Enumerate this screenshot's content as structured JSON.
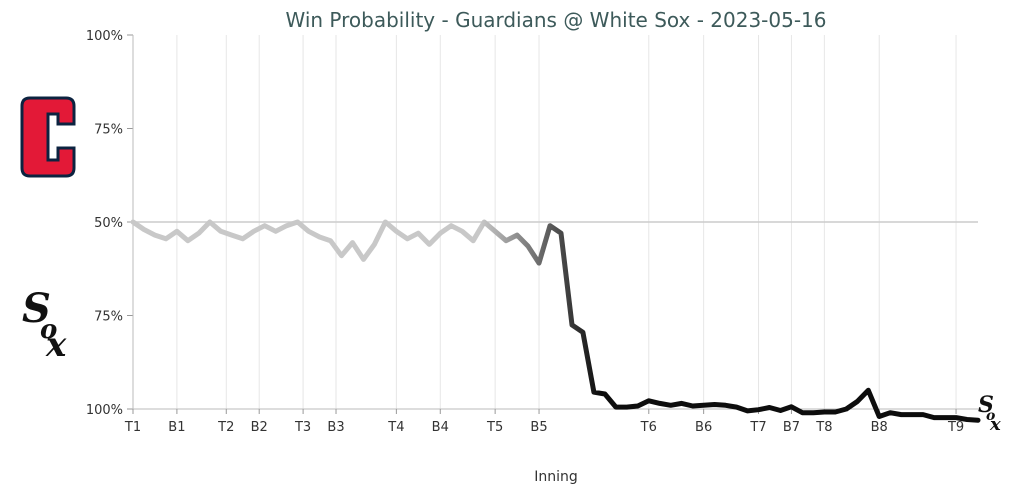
{
  "chart_data": {
    "type": "line",
    "title": "Win Probability - Guardians @ White Sox - 2023-05-16",
    "xlabel": "Inning",
    "ylabel": "",
    "y_tick_labels": [
      "100%",
      "75%",
      "50%",
      "75%",
      "100%"
    ],
    "y_meaning": "White Sox win probability (%); top half = Guardians favored, bottom half = White Sox favored",
    "ylim": [
      0,
      100
    ],
    "x_tick_labels": [
      "T1",
      "B1",
      "T2",
      "B2",
      "T3",
      "B3",
      "T4",
      "B4",
      "T5",
      "B5",
      "T6",
      "B6",
      "T7",
      "B7",
      "T8",
      "B8",
      "T9"
    ],
    "x_tick_positions": [
      0,
      4,
      8.5,
      11.5,
      15.5,
      18.5,
      24,
      28,
      33,
      37,
      47,
      52,
      57,
      60,
      63,
      68,
      75
    ],
    "series": [
      {
        "x": [
          0,
          1,
          2,
          3,
          4,
          5,
          6,
          7,
          8,
          9,
          10,
          11,
          12,
          13,
          14,
          15,
          16,
          17,
          18,
          19,
          20,
          21,
          22,
          23,
          24,
          25,
          26,
          27,
          28,
          29,
          30,
          31,
          32,
          33,
          34,
          35,
          36,
          37,
          38,
          39,
          40,
          41,
          42,
          43,
          44,
          45,
          46,
          47,
          48,
          49,
          50,
          51,
          52,
          53,
          54,
          55,
          56,
          57,
          58,
          59,
          60,
          61,
          62,
          63,
          64,
          65,
          66,
          67,
          68,
          69,
          70,
          71,
          72,
          73,
          74,
          75,
          76,
          77
        ],
        "values": [
          50,
          52,
          53.5,
          54.5,
          52.5,
          55,
          53,
          50,
          52.5,
          53.5,
          54.5,
          52.5,
          51,
          52.5,
          51,
          50,
          52.5,
          54,
          55,
          59,
          55.5,
          60,
          56,
          50,
          52.5,
          54.5,
          53,
          56,
          53,
          51,
          52.5,
          55,
          50,
          52.5,
          55,
          53.5,
          56.5,
          61,
          51,
          53,
          77.5,
          79.5,
          95.5,
          96,
          99.5,
          99.5,
          99.2,
          97.8,
          98.5,
          99,
          98.5,
          99.2,
          99,
          98.8,
          99,
          99.5,
          100.5,
          100.2,
          99.6,
          100.4,
          99.4,
          101,
          101,
          100.8,
          100.8,
          100,
          98,
          95,
          102,
          101,
          101.5,
          101.5,
          101.5,
          102.3,
          102.3,
          102.3,
          102.8,
          103
        ]
      }
    ],
    "colors": {
      "start": "#c8c8c8",
      "end": "#0d0d0d",
      "gridline": "#e6e6e6",
      "midline": "#cccccc",
      "title": "#3d5a5a"
    },
    "logos": {
      "top": "guardians-logo",
      "bottom": "white-sox-logo",
      "end": "white-sox-logo"
    }
  }
}
